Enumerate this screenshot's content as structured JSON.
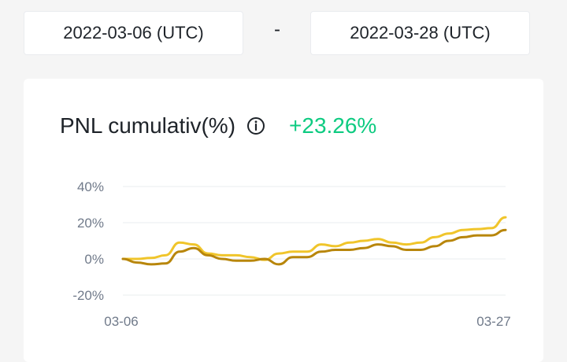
{
  "date_range": {
    "start": "2022-03-06 (UTC)",
    "separator": "-",
    "end": "2022-03-28 (UTC)"
  },
  "card": {
    "title": "PNL cumulativ(%)",
    "value": "+23.26%",
    "info_icon": "info-circle-icon"
  },
  "colors": {
    "positive": "#0ecb81",
    "series_light": "#f0c52b",
    "series_dark": "#b8860b",
    "grid": "#eaecef"
  },
  "chart_data": {
    "type": "line",
    "y_ticks": [
      "40%",
      "20%",
      "0%",
      "-20%"
    ],
    "y_tick_values": [
      40,
      20,
      0,
      -20
    ],
    "x_tick_labels": [
      "03-06",
      "03-27"
    ],
    "ylim": [
      -20,
      40
    ],
    "series": [
      {
        "color": "#f0c52b",
        "values": [
          0,
          0,
          0.5,
          2,
          9,
          8,
          3,
          2,
          2,
          1,
          -0.5,
          3,
          4,
          4,
          8,
          7,
          9,
          10,
          11,
          9,
          8,
          9,
          12,
          14,
          16,
          16.5,
          17,
          23
        ]
      },
      {
        "color": "#b8860b",
        "values": [
          0,
          -2,
          -3,
          -2.5,
          4,
          6,
          2,
          0,
          -1,
          -1,
          0,
          -3,
          1,
          1,
          4,
          5,
          5,
          6,
          8,
          7,
          5,
          5,
          7,
          10,
          12,
          13,
          13,
          16
        ]
      }
    ]
  }
}
